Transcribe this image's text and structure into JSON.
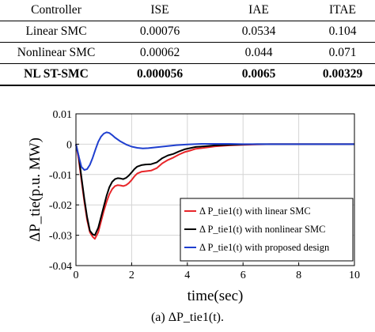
{
  "table": {
    "headers": [
      "Controller",
      "ISE",
      "IAE",
      "ITAE"
    ],
    "rows": [
      [
        "Linear SMC",
        "0.00076",
        "0.0534",
        "0.104"
      ],
      [
        "Nonlinear SMC",
        "0.00062",
        "0.044",
        "0.071"
      ],
      [
        "NL ST-SMC",
        "0.000056",
        "0.0065",
        "0.00329"
      ]
    ]
  },
  "chart_data": {
    "type": "line",
    "xlabel": "time(sec)",
    "ylabel": "ΔP_tie(p.u. MW)",
    "xlim": [
      0,
      10
    ],
    "ylim": [
      -0.04,
      0.01
    ],
    "xticks": [
      0,
      2,
      4,
      6,
      8,
      10
    ],
    "yticks": [
      0.01,
      0,
      -0.01,
      -0.02,
      -0.03,
      -0.04
    ],
    "xtick_labels": [
      "0",
      "2",
      "4",
      "6",
      "8",
      "10"
    ],
    "ytick_labels": [
      "0.01",
      "0",
      "-0.01",
      "-0.02",
      "-0.03",
      "-0.04"
    ],
    "grid": true,
    "legend_position": "lower-right",
    "series": [
      {
        "name": "Δ P_tie1(t) with linear SMC",
        "color": "#e8262a",
        "x": [
          0,
          0.1,
          0.2,
          0.3,
          0.4,
          0.5,
          0.6,
          0.68,
          0.8,
          0.9,
          1.0,
          1.1,
          1.2,
          1.3,
          1.4,
          1.5,
          1.6,
          1.7,
          1.8,
          1.9,
          2.0,
          2.1,
          2.2,
          2.35,
          2.5,
          2.7,
          2.9,
          3.1,
          3.3,
          3.5,
          3.7,
          3.9,
          4.1,
          4.3,
          4.6,
          5.0,
          5.5,
          6.0,
          6.5,
          7.0,
          8.0,
          9.0,
          10.0
        ],
        "y": [
          0,
          -0.005,
          -0.012,
          -0.019,
          -0.025,
          -0.029,
          -0.0305,
          -0.0312,
          -0.029,
          -0.0255,
          -0.022,
          -0.019,
          -0.0165,
          -0.0148,
          -0.0138,
          -0.0135,
          -0.0136,
          -0.0138,
          -0.0135,
          -0.0128,
          -0.0118,
          -0.0106,
          -0.0097,
          -0.0091,
          -0.0089,
          -0.0087,
          -0.0079,
          -0.0063,
          -0.0052,
          -0.0044,
          -0.0034,
          -0.0026,
          -0.0021,
          -0.0015,
          -0.0012,
          -0.0007,
          -0.0004,
          -0.0002,
          -0.0001,
          0,
          0,
          0,
          0
        ]
      },
      {
        "name": "Δ P_tie1(t) with nonlinear SMC",
        "color": "#000000",
        "x": [
          0,
          0.1,
          0.2,
          0.3,
          0.4,
          0.5,
          0.6,
          0.68,
          0.8,
          0.9,
          1.0,
          1.1,
          1.2,
          1.3,
          1.4,
          1.5,
          1.6,
          1.7,
          1.8,
          1.9,
          2.0,
          2.1,
          2.2,
          2.35,
          2.5,
          2.7,
          2.9,
          3.1,
          3.3,
          3.5,
          3.7,
          3.9,
          4.1,
          4.3,
          4.6,
          5.0,
          5.5,
          6.0,
          6.5,
          7.0,
          8.0,
          9.0,
          10.0
        ],
        "y": [
          0,
          -0.004,
          -0.011,
          -0.018,
          -0.024,
          -0.0285,
          -0.0297,
          -0.03,
          -0.0275,
          -0.024,
          -0.0205,
          -0.017,
          -0.0142,
          -0.0124,
          -0.0115,
          -0.0112,
          -0.0113,
          -0.0115,
          -0.0111,
          -0.0103,
          -0.0093,
          -0.0082,
          -0.0074,
          -0.0069,
          -0.0067,
          -0.0066,
          -0.006,
          -0.0046,
          -0.0037,
          -0.0032,
          -0.0024,
          -0.0017,
          -0.0013,
          -0.0009,
          -0.0007,
          -0.0004,
          -0.0002,
          -0.0001,
          0,
          0,
          0,
          0,
          0
        ]
      },
      {
        "name": "Δ P_tie1(t) with proposed design",
        "color": "#1f3fcf",
        "x": [
          0,
          0.1,
          0.2,
          0.3,
          0.4,
          0.5,
          0.6,
          0.7,
          0.8,
          0.9,
          1.0,
          1.1,
          1.2,
          1.3,
          1.4,
          1.6,
          1.8,
          2.0,
          2.2,
          2.4,
          2.6,
          2.8,
          3.0,
          3.3,
          3.6,
          4.0,
          4.5,
          5.0,
          5.5,
          6.0,
          7.0,
          8.0,
          9.0,
          10.0
        ],
        "y": [
          0,
          -0.004,
          -0.0075,
          -0.0085,
          -0.0082,
          -0.0068,
          -0.0045,
          -0.0018,
          0.0008,
          0.0025,
          0.0035,
          0.0039,
          0.0037,
          0.003,
          0.0022,
          0.0009,
          -0.0001,
          -0.0008,
          -0.0012,
          -0.0014,
          -0.0013,
          -0.0011,
          -0.0009,
          -0.0006,
          -0.0003,
          -0.0001,
          0.0001,
          0.0001,
          0.0001,
          0,
          0,
          0,
          0,
          0
        ]
      }
    ]
  },
  "caption": "(a) ΔP_tie1(t)."
}
